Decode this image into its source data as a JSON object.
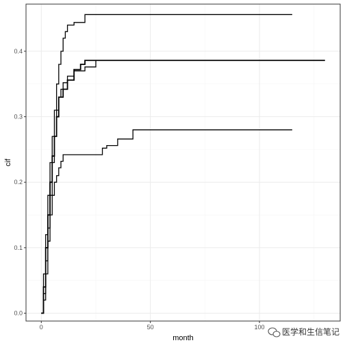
{
  "chart_data": {
    "type": "line",
    "step": true,
    "xlabel": "month",
    "ylabel": "cif",
    "xlim": [
      -7,
      137
    ],
    "ylim": [
      -0.012,
      0.472
    ],
    "xticks": [
      0,
      50,
      100
    ],
    "xtick_labels": [
      "0",
      "50",
      "100"
    ],
    "yticks": [
      0.0,
      0.1,
      0.2,
      0.3,
      0.4
    ],
    "ytick_labels": [
      "0.0",
      "0.1",
      "0.2",
      "0.3",
      "0.4"
    ],
    "grid": true,
    "series": [
      {
        "line_width": 1.3,
        "x": [
          0,
          1,
          2,
          3,
          4,
          5,
          6,
          7,
          8,
          9,
          10,
          11,
          12,
          14,
          15,
          20,
          115
        ],
        "y": [
          0,
          0.06,
          0.12,
          0.18,
          0.23,
          0.27,
          0.31,
          0.35,
          0.38,
          0.4,
          0.42,
          0.43,
          0.44,
          0.44,
          0.444,
          0.456,
          0.456
        ]
      },
      {
        "line_width": 1.8,
        "x": [
          0,
          1,
          2,
          3,
          4,
          5,
          6,
          7,
          8,
          10,
          12,
          15,
          18,
          20,
          24,
          130
        ],
        "y": [
          0,
          0.04,
          0.1,
          0.15,
          0.2,
          0.24,
          0.27,
          0.3,
          0.33,
          0.342,
          0.356,
          0.372,
          0.38,
          0.386,
          0.386,
          0.386
        ]
      },
      {
        "line_width": 1.3,
        "x": [
          0,
          1,
          2,
          3,
          4,
          5,
          6,
          7,
          8,
          9,
          10,
          12,
          15,
          20,
          25,
          130
        ],
        "y": [
          0,
          0.03,
          0.08,
          0.13,
          0.18,
          0.23,
          0.27,
          0.31,
          0.33,
          0.342,
          0.352,
          0.362,
          0.37,
          0.376,
          0.386,
          0.386
        ]
      },
      {
        "line_width": 1.3,
        "x": [
          0,
          1,
          2,
          3,
          4,
          5,
          6,
          7,
          8,
          9,
          10,
          12,
          13,
          15,
          20,
          28,
          30,
          35,
          42,
          115
        ],
        "y": [
          0,
          0.02,
          0.06,
          0.11,
          0.15,
          0.18,
          0.2,
          0.21,
          0.222,
          0.232,
          0.242,
          0.242,
          0.242,
          0.242,
          0.242,
          0.252,
          0.256,
          0.266,
          0.28,
          0.28
        ]
      }
    ]
  },
  "watermark": {
    "text": "医学和生信笔记",
    "icon": "wechat-bubble-icon"
  },
  "colors": {
    "line": "#000000",
    "grid_major": "#ebebeb",
    "grid_minor": "#f5f5f5",
    "panel_border": "#333333"
  }
}
